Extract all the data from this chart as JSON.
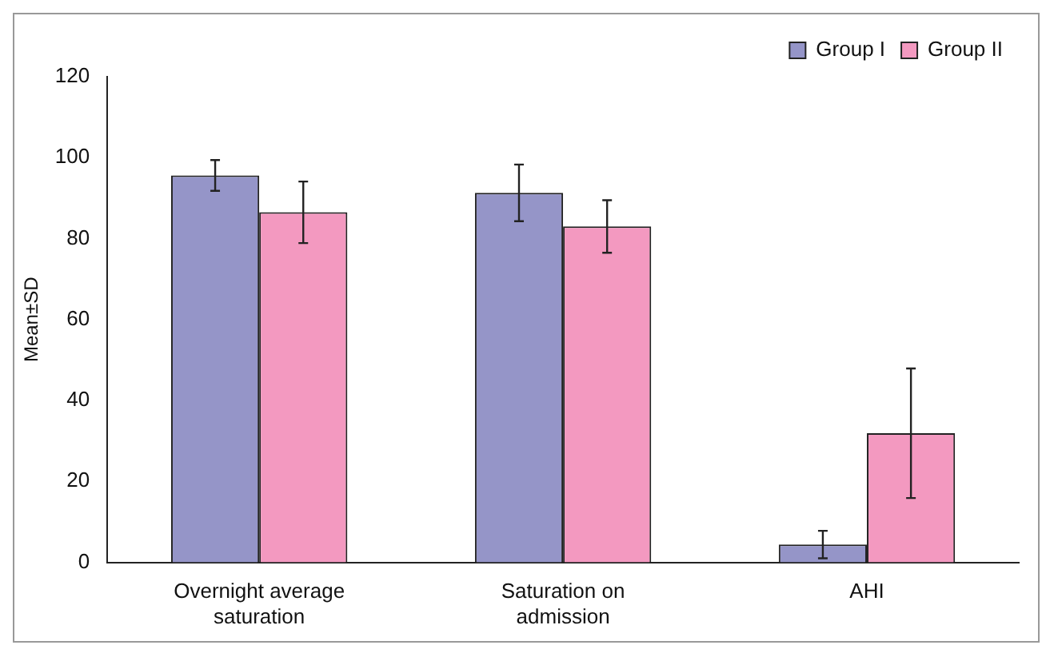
{
  "chart_data": {
    "type": "bar",
    "ylabel": "Mean±SD",
    "categories": [
      "Overnight average saturation",
      "Saturation on admission",
      "AHI"
    ],
    "series": [
      {
        "name": "Group I",
        "color": "#9595c8",
        "values": [
          95.6,
          91.3,
          4.4
        ],
        "errors": [
          3.8,
          7,
          3.4
        ]
      },
      {
        "name": "Group II",
        "color": "#f399c0",
        "values": [
          86.5,
          83,
          31.9
        ],
        "errors": [
          7.6,
          6.5,
          16
        ]
      }
    ],
    "ylim": [
      0,
      120
    ],
    "yticks": [
      0,
      20,
      40,
      60,
      80,
      100,
      120
    ],
    "grid": false,
    "legend": "top right"
  }
}
